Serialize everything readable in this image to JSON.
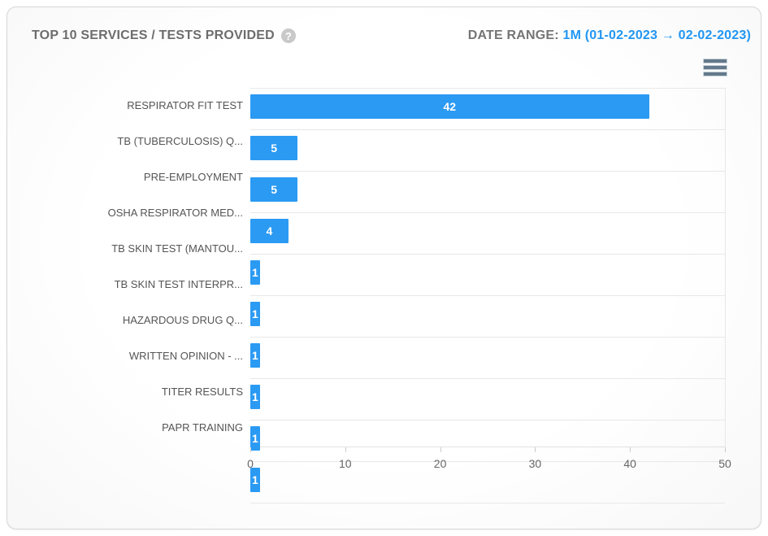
{
  "header": {
    "title": "TOP 10 SERVICES / TESTS PROVIDED",
    "help_icon_glyph": "?",
    "date_range_label": "DATE RANGE:",
    "date_range_value": "1M (01-02-2023 → 02-02-2023)"
  },
  "icons": {
    "help": "question-mark-circle",
    "menu": "hamburger-menu"
  },
  "colors": {
    "bar": "#2b9af3",
    "date_accent": "#2196f3",
    "title_text": "#6d6d6d",
    "axis_label_text": "#666666",
    "category_label_text": "#555555",
    "gridline": "#e8e8e8",
    "data_label_text": "#ffffff"
  },
  "chart_data": {
    "type": "bar",
    "orientation": "horizontal",
    "title": "TOP 10 SERVICES / TESTS PROVIDED",
    "categories": [
      "RESPIRATOR FIT TEST",
      "TB (TUBERCULOSIS) Q...",
      "PRE-EMPLOYMENT",
      "OSHA RESPIRATOR MED...",
      "TB SKIN TEST (MANTOU...",
      "TB SKIN TEST INTERPR...",
      "HAZARDOUS DRUG Q...",
      "WRITTEN OPINION - ...",
      "TITER RESULTS",
      "PAPR TRAINING"
    ],
    "values": [
      42,
      5,
      5,
      4,
      1,
      1,
      1,
      1,
      1,
      1
    ],
    "xlabel": "",
    "ylabel": "",
    "xlim": [
      0,
      50
    ],
    "xticks": [
      0,
      10,
      20,
      30,
      40,
      50
    ],
    "grid": "row separators, no vertical gridlines",
    "legend": "none",
    "data_labels": "value shown inside bar, centered, white bold"
  }
}
